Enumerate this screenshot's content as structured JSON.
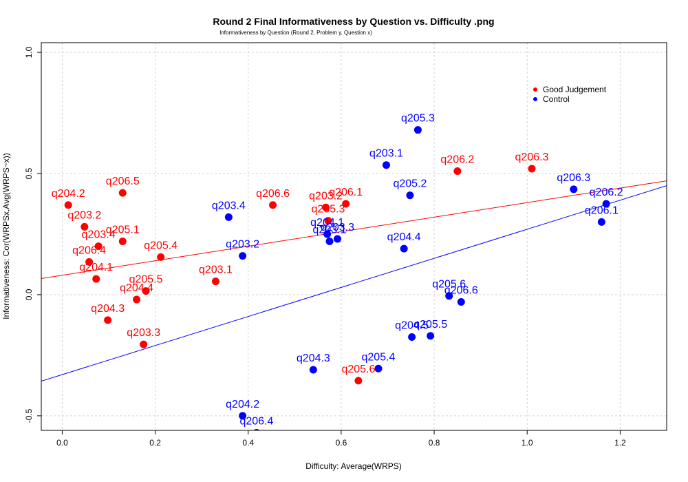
{
  "chart_data": {
    "type": "scatter",
    "title": "Round 2 Final Informativeness by Question vs. Difficulty  .png",
    "subtitle": "Informativeness by Question (Round 2, Problem y, Question x)",
    "xlabel": "Difficulty: Average(WRPS)",
    "ylabel": "Informativeness: Cor(WRPSx,Avg(WRPS~x))",
    "xlim": [
      -0.045,
      1.3
    ],
    "ylim": [
      -0.56,
      1.04
    ],
    "xticks": [
      0.0,
      0.2,
      0.4,
      0.6,
      0.8,
      1.0,
      1.2
    ],
    "xtick_labels": [
      "0.0",
      "0.2",
      "0.4",
      "0.6",
      "0.8",
      "1.0",
      "1.2"
    ],
    "yticks": [
      -0.5,
      0.0,
      0.5,
      1.0
    ],
    "ytick_labels": [
      "-0.5",
      "0.0",
      "0.5",
      "1.0"
    ],
    "grid": true,
    "legend_position": "top-right",
    "series": [
      {
        "name": "Good Judgement",
        "color": "#ff0000",
        "fit_line": {
          "slope": 0.3,
          "intercept": 0.08
        },
        "points": [
          {
            "label": "q204.2",
            "x": 0.013,
            "y": 0.37
          },
          {
            "label": "q203.2",
            "x": 0.048,
            "y": 0.28
          },
          {
            "label": "q203.4",
            "x": 0.078,
            "y": 0.2
          },
          {
            "label": "q206.4",
            "x": 0.058,
            "y": 0.135
          },
          {
            "label": "q204.1",
            "x": 0.073,
            "y": 0.065
          },
          {
            "label": "q206.5",
            "x": 0.13,
            "y": 0.42
          },
          {
            "label": "q205.1",
            "x": 0.13,
            "y": 0.22
          },
          {
            "label": "q205.4",
            "x": 0.212,
            "y": 0.155
          },
          {
            "label": "q205.5",
            "x": 0.18,
            "y": 0.015
          },
          {
            "label": "q204.4",
            "x": 0.16,
            "y": -0.02
          },
          {
            "label": "q204.3",
            "x": 0.098,
            "y": -0.105
          },
          {
            "label": "q203.3",
            "x": 0.175,
            "y": -0.205
          },
          {
            "label": "q203.1",
            "x": 0.33,
            "y": 0.055
          },
          {
            "label": "q206.6",
            "x": 0.453,
            "y": 0.37
          },
          {
            "label": "q203.2",
            "x": 0.567,
            "y": 0.36
          },
          {
            "label": "q206.1",
            "x": 0.61,
            "y": 0.375
          },
          {
            "label": "q205.3",
            "x": 0.572,
            "y": 0.305
          },
          {
            "label": "q205.6",
            "x": 0.637,
            "y": -0.355
          },
          {
            "label": "q206.2",
            "x": 0.85,
            "y": 0.51
          },
          {
            "label": "q206.3",
            "x": 1.01,
            "y": 0.52
          }
        ]
      },
      {
        "name": "Control",
        "color": "#0000ff",
        "fit_line": {
          "slope": 0.6,
          "intercept": -0.33
        },
        "points": [
          {
            "label": "q203.4",
            "x": 0.358,
            "y": 0.32
          },
          {
            "label": "q203.2",
            "x": 0.388,
            "y": 0.16
          },
          {
            "label": "q204.2",
            "x": 0.388,
            "y": -0.5
          },
          {
            "label": "q206.4",
            "x": 0.418,
            "y": -0.57
          },
          {
            "label": "q204.3",
            "x": 0.54,
            "y": -0.31
          },
          {
            "label": "q204.1",
            "x": 0.57,
            "y": 0.25
          },
          {
            "label": "q203.1",
            "x": 0.575,
            "y": 0.22
          },
          {
            "label": "q203.3",
            "x": 0.592,
            "y": 0.23
          },
          {
            "label": "q203.1",
            "x": 0.697,
            "y": 0.535
          },
          {
            "label": "q205.4",
            "x": 0.68,
            "y": -0.305
          },
          {
            "label": "q204.4",
            "x": 0.735,
            "y": 0.19
          },
          {
            "label": "q205.2",
            "x": 0.748,
            "y": 0.41
          },
          {
            "label": "q205.3",
            "x": 0.765,
            "y": 0.68
          },
          {
            "label": "q204.5",
            "x": 0.752,
            "y": -0.175
          },
          {
            "label": "q205.5",
            "x": 0.792,
            "y": -0.17
          },
          {
            "label": "q205.6",
            "x": 0.832,
            "y": -0.005
          },
          {
            "label": "q206.6",
            "x": 0.858,
            "y": -0.03
          },
          {
            "label": "q206.3",
            "x": 1.1,
            "y": 0.435
          },
          {
            "label": "q206.2",
            "x": 1.17,
            "y": 0.375
          },
          {
            "label": "q206.1",
            "x": 1.16,
            "y": 0.3
          }
        ]
      }
    ]
  }
}
